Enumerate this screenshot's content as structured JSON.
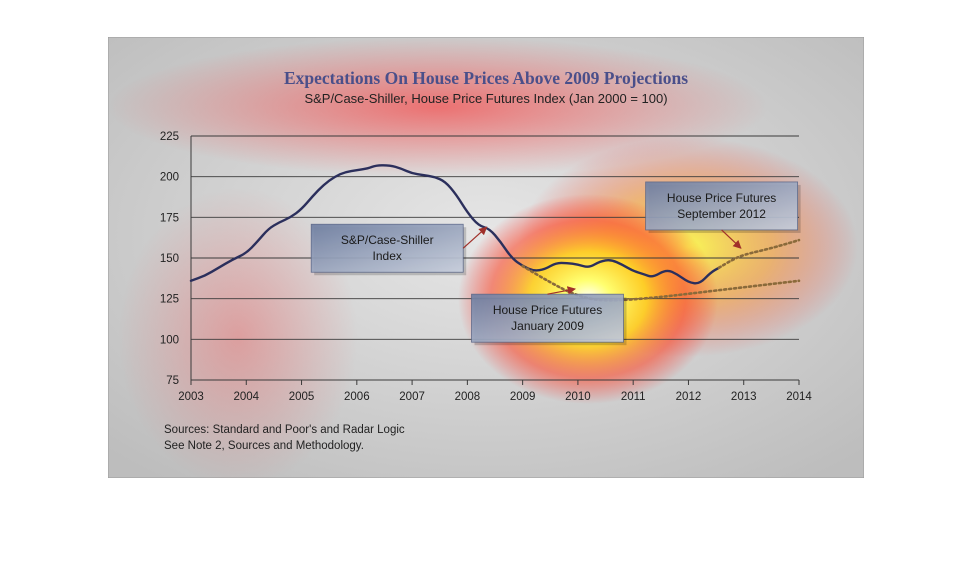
{
  "chart_data": {
    "type": "line",
    "title": "Expectations On House Prices Above 2009 Projections",
    "subtitle": "S&P/Case-Shiller, House Price Futures Index (Jan 2000 = 100)",
    "xlabel": "",
    "ylabel": "",
    "xlim": [
      2003,
      2014
    ],
    "ylim": [
      75,
      225
    ],
    "x_ticks": [
      "2003",
      "2004",
      "2005",
      "2006",
      "2007",
      "2008",
      "2009",
      "2010",
      "2011",
      "2012",
      "2013",
      "2014"
    ],
    "y_ticks": [
      "75",
      "100",
      "125",
      "150",
      "175",
      "200",
      "225"
    ],
    "grid": "horizontal",
    "series": [
      {
        "name": "S&P/Case-Shiller Index",
        "style": "solid",
        "color": "#2b2f5c",
        "points": [
          [
            2003,
            136
          ],
          [
            2003.25,
            139
          ],
          [
            2003.5,
            144
          ],
          [
            2003.75,
            149
          ],
          [
            2004,
            153
          ],
          [
            2004.2,
            160
          ],
          [
            2004.4,
            168
          ],
          [
            2004.6,
            172
          ],
          [
            2004.8,
            175
          ],
          [
            2005,
            180
          ],
          [
            2005.2,
            188
          ],
          [
            2005.4,
            195
          ],
          [
            2005.6,
            200
          ],
          [
            2005.8,
            203
          ],
          [
            2006,
            204
          ],
          [
            2006.2,
            205
          ],
          [
            2006.35,
            207
          ],
          [
            2006.6,
            207
          ],
          [
            2006.8,
            205
          ],
          [
            2007,
            202
          ],
          [
            2007.2,
            201
          ],
          [
            2007.4,
            200
          ],
          [
            2007.6,
            197
          ],
          [
            2007.8,
            189
          ],
          [
            2008,
            178
          ],
          [
            2008.2,
            170
          ],
          [
            2008.4,
            168
          ],
          [
            2008.6,
            160
          ],
          [
            2008.8,
            150
          ],
          [
            2009,
            145
          ],
          [
            2009.2,
            142
          ],
          [
            2009.4,
            143
          ],
          [
            2009.6,
            147
          ],
          [
            2009.8,
            147
          ],
          [
            2010,
            146
          ],
          [
            2010.2,
            144
          ],
          [
            2010.4,
            148
          ],
          [
            2010.6,
            149
          ],
          [
            2010.8,
            146
          ],
          [
            2011,
            142
          ],
          [
            2011.2,
            140
          ],
          [
            2011.35,
            138
          ],
          [
            2011.6,
            143
          ],
          [
            2011.8,
            140
          ],
          [
            2012,
            135
          ],
          [
            2012.2,
            134
          ],
          [
            2012.4,
            141
          ],
          [
            2012.55,
            144
          ]
        ]
      },
      {
        "name": "House Price Futures September 2012",
        "style": "dotted",
        "color": "#8a6a3a",
        "points": [
          [
            2012.55,
            144
          ],
          [
            2012.8,
            149
          ],
          [
            2013,
            152
          ],
          [
            2013.5,
            156
          ],
          [
            2014,
            161
          ]
        ]
      },
      {
        "name": "House Price Futures January 2009",
        "style": "dotted",
        "color": "#8a6a3a",
        "points": [
          [
            2009,
            145
          ],
          [
            2009.5,
            135
          ],
          [
            2009.9,
            128
          ],
          [
            2010.3,
            124
          ],
          [
            2010.8,
            124
          ],
          [
            2011.5,
            126
          ],
          [
            2012,
            128
          ],
          [
            2013,
            132
          ],
          [
            2014,
            136
          ]
        ]
      }
    ],
    "annotations": [
      {
        "lines": [
          "S&P/Case-Shiller",
          "Index"
        ],
        "box_center": [
          2006.55,
          156
        ],
        "arrow_to": [
          2008.35,
          169
        ]
      },
      {
        "lines": [
          "House Price Futures",
          "September 2012"
        ],
        "box_center": [
          2012.6,
          182
        ],
        "arrow_to": [
          2012.95,
          156
        ]
      },
      {
        "lines": [
          "House Price Futures",
          "January 2009"
        ],
        "box_center": [
          2009.45,
          113
        ],
        "arrow_to": [
          2009.95,
          131
        ]
      }
    ],
    "sources": [
      "Sources:  Standard and Poor's and Radar Logic",
      "See Note 2, Sources and Methodology."
    ]
  }
}
